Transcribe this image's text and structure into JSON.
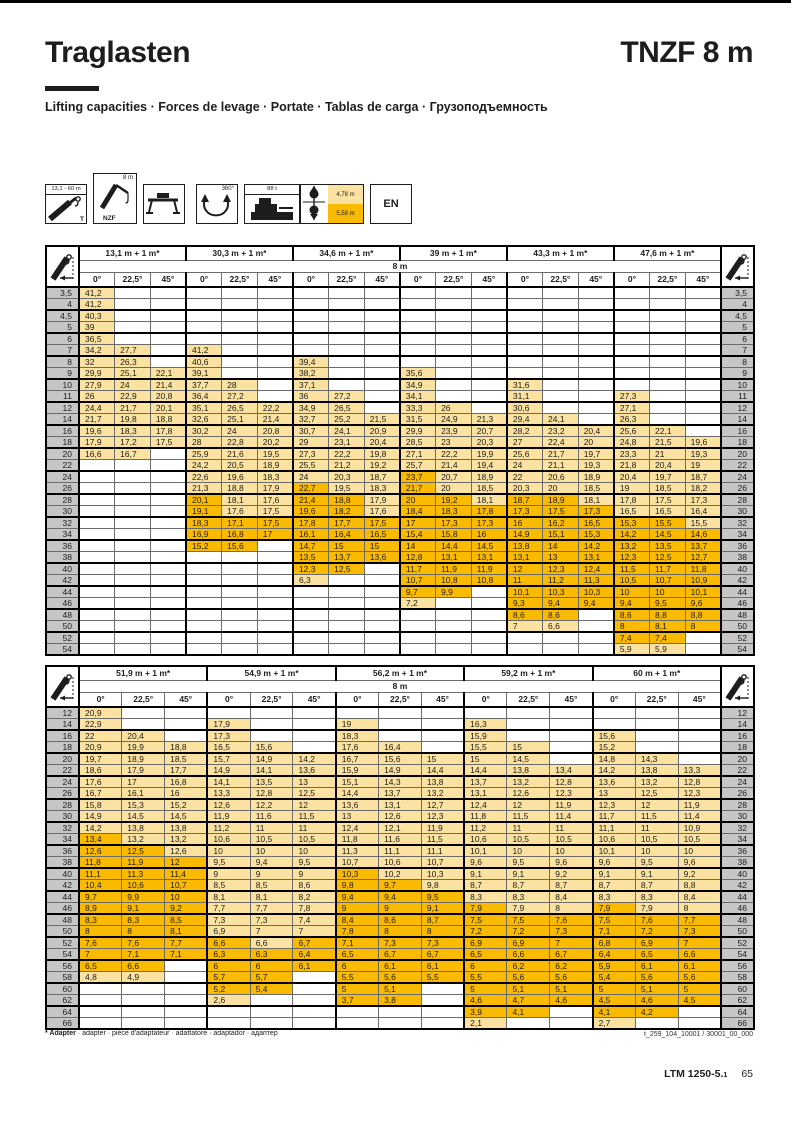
{
  "header": {
    "title_left": "Traglasten",
    "title_right": "TNZF 8 m",
    "subtitle": "Lifting capacities · Forces de levage · Portate · Tablas de carga · Грузоподъемность"
  },
  "icons": {
    "boom_range": "13,1 - 60 m",
    "boom_type": "T",
    "jib_height": "8 m",
    "jib_type": "NZF",
    "slewing": "360°",
    "counterweight": "88 t",
    "head_height_light": "4,78 m",
    "head_height_dark": "5,58 m",
    "lang": "EN"
  },
  "colors": {
    "cell_light": "#fbe2a1",
    "cell_dark": "#f9ba00",
    "row_label_gray": "#c6c6c6"
  },
  "footer": {
    "footnote_bold": "* Adapter",
    "footnote_rest": " · adapter · pièce d'adaptateur · adattatore · adaptador · адаптер",
    "doc_code": "t_259_104_10001 / 30001_00_000",
    "model": "LTM 1250-5.",
    "model_sub": "1",
    "page_num": "65"
  },
  "table1": {
    "groups": [
      "13,1 m + 1 m*",
      "30,3 m + 1 m*",
      "34,6 m + 1 m*",
      "39 m + 1 m*",
      "43,3 m + 1 m*",
      "47,6 m + 1 m*"
    ],
    "span": "8 m",
    "angles": [
      "0°",
      "22,5°",
      "45°"
    ],
    "rows": [
      [
        "3,5",
        "41,2",
        "",
        "",
        "",
        "",
        "",
        "",
        "",
        "",
        "",
        "",
        "",
        "",
        "",
        "",
        "",
        "",
        ""
      ],
      [
        "4",
        "41,2",
        "",
        "",
        "",
        "",
        "",
        "",
        "",
        "",
        "",
        "",
        "",
        "",
        "",
        "",
        "",
        "",
        ""
      ],
      [
        "4,5",
        "40,3",
        "",
        "",
        "",
        "",
        "",
        "",
        "",
        "",
        "",
        "",
        "",
        "",
        "",
        "",
        "",
        "",
        ""
      ],
      [
        "5",
        "39",
        "",
        "",
        "",
        "",
        "",
        "",
        "",
        "",
        "",
        "",
        "",
        "",
        "",
        "",
        "",
        "",
        ""
      ],
      [
        "6",
        "36,5",
        "",
        "",
        "",
        "",
        "",
        "",
        "",
        "",
        "",
        "",
        "",
        "",
        "",
        "",
        "",
        "",
        ""
      ],
      [
        "7",
        "34,2",
        "27,7",
        "",
        "41,2",
        "",
        "",
        "",
        "",
        "",
        "",
        "",
        "",
        "",
        "",
        "",
        "",
        "",
        ""
      ],
      [
        "8",
        "32",
        "26,3",
        "",
        "40,6",
        "",
        "",
        "39,4",
        "",
        "",
        "",
        "",
        "",
        "",
        "",
        "",
        "",
        "",
        ""
      ],
      [
        "9",
        "29,9",
        "25,1",
        "22,1",
        "39,1",
        "",
        "",
        "38,2",
        "",
        "",
        "35,6",
        "",
        "",
        "",
        "",
        "",
        "",
        "",
        ""
      ],
      [
        "10",
        "27,9",
        "24",
        "21,4",
        "37,7",
        "28",
        "",
        "37,1",
        "",
        "",
        "34,9",
        "",
        "",
        "31,6",
        "",
        "",
        "",
        "",
        ""
      ],
      [
        "11",
        "26",
        "22,9",
        "20,8",
        "36,4",
        "27,2",
        "",
        "36",
        "27,2",
        "",
        "34,1",
        "",
        "",
        "31,1",
        "",
        "",
        "27,3",
        "",
        ""
      ],
      [
        "12",
        "24,4",
        "21,7",
        "20,1",
        "35,1",
        "26,5",
        "22,2",
        "34,9",
        "26,5",
        "",
        "33,3",
        "26",
        "",
        "30,6",
        "",
        "",
        "27,1",
        "",
        ""
      ],
      [
        "14",
        "21,7",
        "19,8",
        "18,8",
        "32,6",
        "25,1",
        "21,4",
        "32,7",
        "25,2",
        "21,5",
        "31,5",
        "24,9",
        "21,3",
        "29,4",
        "24,1",
        "",
        "26,3",
        "",
        ""
      ],
      [
        "16",
        "19,6",
        "18,3",
        "17,8",
        "30,2",
        "24",
        "20,8",
        "30,7",
        "24,1",
        "20,9",
        "29,9",
        "23,9",
        "20,7",
        "28,2",
        "23,2",
        "20,4",
        "25,6",
        "22,1",
        ""
      ],
      [
        "18",
        "17,9",
        "17,2",
        "17,5",
        "28",
        "22,8",
        "20,2",
        "29",
        "23,1",
        "20,4",
        "28,5",
        "23",
        "20,3",
        "27",
        "22,4",
        "20",
        "24,8",
        "21,5",
        "19,6"
      ],
      [
        "20",
        "16,6",
        "16,7",
        "",
        "25,9",
        "21,6",
        "19,5",
        "27,3",
        "22,2",
        "19,8",
        "27,1",
        "22,2",
        "19,9",
        "25,6",
        "21,7",
        "19,7",
        "23,3",
        "21",
        "19,3"
      ],
      [
        "22",
        "",
        "",
        "",
        "24,2",
        "20,5",
        "18,9",
        "25,5",
        "21,2",
        "19,2",
        "25,7",
        "21,4",
        "19,4",
        "24",
        "21,1",
        "19,3",
        "21,8",
        "20,4",
        "19"
      ],
      [
        "24",
        "",
        "",
        "",
        "22,6",
        "19,6",
        "18,3",
        "24",
        "20,3",
        "18,7",
        "!23,7",
        "20,7",
        "18,9",
        "22",
        "20,6",
        "18,9",
        "20,4",
        "19,7",
        "18,7"
      ],
      [
        "26",
        "",
        "",
        "",
        "21,3",
        "18,8",
        "17,9",
        "!22,7",
        "19,5",
        "18,3",
        "!21,7",
        "20",
        "18,5",
        "20,3",
        "20",
        "18,5",
        "19",
        "18,5",
        "18,2"
      ],
      [
        "28",
        "",
        "",
        "",
        "!20,1",
        "18,1",
        "17,6",
        "!21,4",
        "!18,8",
        "17,9",
        "!20",
        "!19,2",
        "18,1",
        "!18,7",
        "!18,9",
        "18,1",
        "17,8",
        "17,5",
        "17,3"
      ],
      [
        "30",
        "",
        "",
        "",
        "!19,1",
        "17,6",
        "17,5",
        "!19,6",
        "!18,2",
        "17,6",
        "!18,4",
        "!18,3",
        "!17,8",
        "!17,3",
        "!17,5",
        "!17,3",
        "16,5",
        "16,5",
        "16,4"
      ],
      [
        "32",
        "",
        "",
        "",
        "!18,3",
        "!17,1",
        "!17,5",
        "!17,8",
        "!17,7",
        "!17,5",
        "!17",
        "!17,3",
        "!17,3",
        "!16",
        "!16,2",
        "!16,5",
        "!15,3",
        "!15,5",
        "15,5"
      ],
      [
        "34",
        "",
        "",
        "",
        "!16,9",
        "!16,8",
        "!17",
        "!16,1",
        "!16,4",
        "!16,5",
        "!15,4",
        "!15,8",
        "!16",
        "!14,9",
        "!15,1",
        "!15,3",
        "!14,2",
        "!14,5",
        "!14,6"
      ],
      [
        "36",
        "",
        "",
        "",
        "!15,2",
        "!15,6",
        "",
        "!14,7",
        "!15",
        "!15",
        "!14",
        "!14,4",
        "!14,5",
        "!13,8",
        "!14",
        "!14,2",
        "!13,2",
        "!13,5",
        "!13,7"
      ],
      [
        "38",
        "",
        "",
        "",
        "",
        "",
        "",
        "!13,5",
        "!13,7",
        "!13,6",
        "!12,8",
        "!13,1",
        "!13,1",
        "!13,1",
        "!13",
        "!13,1",
        "!12,3",
        "!12,5",
        "!12,7"
      ],
      [
        "40",
        "",
        "",
        "",
        "",
        "",
        "",
        "!12,3",
        "!12,5",
        "",
        "!11,7",
        "!11,9",
        "!11,9",
        "!12",
        "!12,3",
        "!12,4",
        "!11,5",
        "!11,7",
        "!11,8"
      ],
      [
        "42",
        "",
        "",
        "",
        "",
        "",
        "",
        "6,3",
        "",
        "",
        "!10,7",
        "!10,8",
        "!10,8",
        "!11",
        "!11,2",
        "!11,3",
        "!10,5",
        "!10,7",
        "!10,9"
      ],
      [
        "44",
        "",
        "",
        "",
        "",
        "",
        "",
        "",
        "",
        "",
        "!9,7",
        "!9,9",
        "",
        "!10,1",
        "!10,3",
        "!10,3",
        "!10",
        "!10",
        "!10,1"
      ],
      [
        "46",
        "",
        "",
        "",
        "",
        "",
        "",
        "",
        "",
        "",
        "7,2",
        "",
        "",
        "!9,3",
        "!9,4",
        "!9,4",
        "!9,4",
        "!9,5",
        "!9,6"
      ],
      [
        "48",
        "",
        "",
        "",
        "",
        "",
        "",
        "",
        "",
        "",
        "",
        "",
        "",
        "!8,6",
        "!8,6",
        "",
        "!8,6",
        "!8,8",
        "!8,8"
      ],
      [
        "50",
        "",
        "",
        "",
        "",
        "",
        "",
        "",
        "",
        "",
        "",
        "",
        "",
        "7",
        "6,6",
        "",
        "!8",
        "!8,1",
        "!8"
      ],
      [
        "52",
        "",
        "",
        "",
        "",
        "",
        "",
        "",
        "",
        "",
        "",
        "",
        "",
        "",
        "",
        "",
        "!7,4",
        "!7,4",
        ""
      ],
      [
        "54",
        "",
        "",
        "",
        "",
        "",
        "",
        "",
        "",
        "",
        "",
        "",
        "",
        "",
        "",
        "",
        "5,9",
        "5,9",
        ""
      ]
    ]
  },
  "table2": {
    "groups": [
      "51,9 m + 1 m*",
      "54,9 m + 1 m*",
      "56,2 m + 1 m*",
      "59,2 m + 1 m*",
      "60 m + 1 m*"
    ],
    "span": "8 m",
    "angles": [
      "0°",
      "22,5°",
      "45°"
    ],
    "rows": [
      [
        "12",
        "20,9",
        "",
        "",
        "",
        "",
        "",
        "",
        "",
        "",
        "",
        "",
        "",
        "",
        "",
        ""
      ],
      [
        "14",
        "22,9",
        "",
        "",
        "17,9",
        "",
        "",
        "19",
        "",
        "",
        "16,3",
        "",
        "",
        "",
        "",
        ""
      ],
      [
        "16",
        "22",
        "20,4",
        "",
        "17,3",
        "",
        "",
        "18,3",
        "",
        "",
        "15,9",
        "",
        "",
        "15,6",
        "",
        ""
      ],
      [
        "18",
        "20,9",
        "19,9",
        "18,8",
        "16,5",
        "15,6",
        "",
        "17,6",
        "16,4",
        "",
        "15,5",
        "15",
        "",
        "15,2",
        "",
        ""
      ],
      [
        "20",
        "19,7",
        "18,9",
        "18,5",
        "15,7",
        "14,9",
        "14,2",
        "16,7",
        "15,6",
        "15",
        "15",
        "14,5",
        "",
        "14,8",
        "14,3",
        ""
      ],
      [
        "22",
        "18,6",
        "17,9",
        "17,7",
        "14,9",
        "14,1",
        "13,6",
        "15,9",
        "14,9",
        "14,4",
        "14,4",
        "13,8",
        "13,4",
        "14,2",
        "13,8",
        "13,3"
      ],
      [
        "24",
        "17,6",
        "17",
        "16,8",
        "14,1",
        "13,5",
        "13",
        "15,1",
        "14,3",
        "13,8",
        "13,7",
        "13,2",
        "12,8",
        "13,6",
        "13,2",
        "12,8"
      ],
      [
        "26",
        "16,7",
        "16,1",
        "16",
        "13,3",
        "12,8",
        "12,5",
        "14,4",
        "13,7",
        "13,2",
        "13,1",
        "12,6",
        "12,3",
        "13",
        "12,5",
        "12,3"
      ],
      [
        "28",
        "15,8",
        "15,3",
        "15,2",
        "12,6",
        "12,2",
        "12",
        "13,6",
        "13,1",
        "12,7",
        "12,4",
        "12",
        "11,9",
        "12,3",
        "12",
        "11,9"
      ],
      [
        "30",
        "14,9",
        "14,5",
        "14,5",
        "11,9",
        "11,6",
        "11,5",
        "13",
        "12,6",
        "12,3",
        "11,8",
        "11,5",
        "11,4",
        "11,7",
        "11,5",
        "11,4"
      ],
      [
        "32",
        "14,2",
        "13,8",
        "13,8",
        "11,2",
        "11",
        "11",
        "12,4",
        "12,1",
        "11,9",
        "11,2",
        "11",
        "11",
        "11,1",
        "11",
        "10,9"
      ],
      [
        "34",
        "!13,4",
        "13,2",
        "13,2",
        "10,6",
        "10,5",
        "10,5",
        "11,8",
        "11,6",
        "11,5",
        "10,6",
        "10,5",
        "10,5",
        "10,6",
        "10,5",
        "10,5"
      ],
      [
        "36",
        "!12,6",
        "!12,5",
        "12,6",
        "10",
        "10",
        "10",
        "11,3",
        "11,1",
        "11,1",
        "10,1",
        "10",
        "10",
        "10,1",
        "10",
        "10"
      ],
      [
        "38",
        "!11,8",
        "!11,9",
        "!12",
        "9,5",
        "9,4",
        "9,5",
        "10,7",
        "10,6",
        "10,7",
        "9,6",
        "9,5",
        "9,6",
        "9,6",
        "9,5",
        "9,6"
      ],
      [
        "40",
        "!11,1",
        "!11,3",
        "!11,4",
        "9",
        "9",
        "9",
        "!10,3",
        "10,2",
        "10,3",
        "9,1",
        "9,1",
        "9,2",
        "9,1",
        "9,1",
        "9,2"
      ],
      [
        "42",
        "!10,4",
        "!10,6",
        "!10,7",
        "8,5",
        "8,5",
        "8,6",
        "!9,8",
        "!9,7",
        "9,8",
        "8,7",
        "8,7",
        "8,7",
        "8,7",
        "8,7",
        "8,8"
      ],
      [
        "44",
        "!9,7",
        "!9,9",
        "!10",
        "8,1",
        "8,1",
        "8,2",
        "!9,4",
        "!9,4",
        "!9,5",
        "8,3",
        "8,3",
        "8,4",
        "8,3",
        "8,3",
        "8,4"
      ],
      [
        "46",
        "!8,9",
        "!9,1",
        "!9,2",
        "7,7",
        "7,7",
        "7,8",
        "!9",
        "!9",
        "!9,1",
        "!7,9",
        "7,9",
        "8",
        "!7,9",
        "7,9",
        "8"
      ],
      [
        "48",
        "!8,3",
        "!8,3",
        "!8,5",
        "7,3",
        "7,3",
        "7,4",
        "!8,4",
        "!8,6",
        "!8,7",
        "!7,5",
        "!7,5",
        "!7,6",
        "!7,5",
        "!7,6",
        "!7,7"
      ],
      [
        "50",
        "!8",
        "!8",
        "!8,1",
        "6,9",
        "7",
        "7",
        "!7,8",
        "!8",
        "!8",
        "!7,2",
        "!7,2",
        "!7,3",
        "!7,1",
        "!7,2",
        "!7,3"
      ],
      [
        "52",
        "!7,6",
        "!7,6",
        "!7,7",
        "!6,6",
        "6,6",
        "!6,7",
        "!7,1",
        "!7,3",
        "!7,3",
        "!6,9",
        "!6,9",
        "!7",
        "!6,8",
        "!6,9",
        "!7"
      ],
      [
        "54",
        "!7",
        "!7,1",
        "!7,1",
        "!6,3",
        "!6,3",
        "!6,4",
        "!6,5",
        "!6,7",
        "!6,7",
        "!6,5",
        "!6,6",
        "!6,7",
        "!6,4",
        "!6,5",
        "!6,6"
      ],
      [
        "56",
        "!6,5",
        "!6,6",
        "",
        "!6",
        "!6",
        "!6,1",
        "!6",
        "!6,1",
        "!6,1",
        "!6",
        "!6,2",
        "!6,2",
        "!5,9",
        "!6,1",
        "!6,1"
      ],
      [
        "58",
        "4,8",
        "4,9",
        "",
        "!5,7",
        "!5,7",
        "",
        "!5,5",
        "!5,6",
        "!5,5",
        "!5,5",
        "!5,6",
        "!5,6",
        "!5,4",
        "!5,6",
        "!5,6"
      ],
      [
        "60",
        "",
        "",
        "",
        "!5,2",
        "!5,4",
        "",
        "!5",
        "!5,1",
        "",
        "!5",
        "!5,1",
        "!5,1",
        "!5",
        "!5,1",
        "!5"
      ],
      [
        "62",
        "",
        "",
        "",
        "2,6",
        "",
        "",
        "!3,7",
        "!3,8",
        "",
        "!4,6",
        "!4,7",
        "!4,6",
        "!4,5",
        "!4,6",
        "!4,5"
      ],
      [
        "64",
        "",
        "",
        "",
        "",
        "",
        "",
        "",
        "",
        "",
        "!3,9",
        "!4,1",
        "",
        "!4,1",
        "!4,2",
        ""
      ],
      [
        "66",
        "",
        "",
        "",
        "",
        "",
        "",
        "",
        "",
        "",
        "2,1",
        "",
        "",
        "2,7",
        "",
        ""
      ]
    ]
  }
}
